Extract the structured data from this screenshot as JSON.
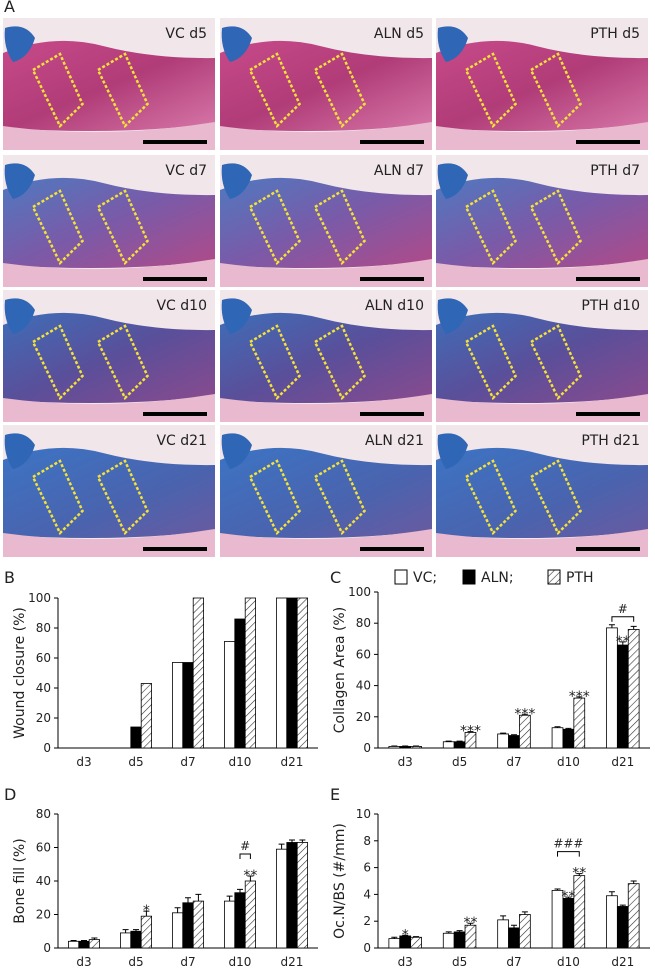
{
  "figure": {
    "panel_a": {
      "letter": "A",
      "images": [
        "VC d5",
        "ALN d5",
        "PTH d5",
        "VC d7",
        "ALN d7",
        "PTH d7",
        "VC d10",
        "ALN d10",
        "PTH d10",
        "VC d21",
        "ALN d21",
        "PTH d21"
      ]
    },
    "legend": [
      {
        "name": "VC;",
        "color": "#ffffff"
      },
      {
        "name": "ALN;",
        "color": "#000000"
      },
      {
        "name": "PTH",
        "color": "#ffffff",
        "pattern": "hatch"
      }
    ]
  },
  "chart_data": [
    {
      "type": "bar",
      "panel": "B",
      "ylabel": "Wound closure (%)",
      "categories": [
        "d3",
        "d5",
        "d7",
        "d10",
        "d21"
      ],
      "ylim": [
        0,
        100
      ],
      "yticks": [
        0,
        20,
        40,
        60,
        80,
        100
      ],
      "series": [
        {
          "values": [
            0,
            0,
            57,
            71,
            100
          ]
        },
        {
          "values": [
            0,
            14,
            57,
            86,
            100
          ]
        },
        {
          "values": [
            0,
            43,
            100,
            100,
            100
          ]
        }
      ],
      "annotations": []
    },
    {
      "type": "bar",
      "panel": "C",
      "ylabel": "Collagen Area (%)",
      "categories": [
        "d3",
        "d5",
        "d7",
        "d10",
        "d21"
      ],
      "ylim": [
        0,
        100
      ],
      "yticks": [
        0,
        20,
        40,
        60,
        80,
        100
      ],
      "series": [
        {
          "values": [
            1,
            4,
            9,
            13,
            77
          ],
          "errors": [
            0.3,
            0.4,
            0.5,
            0.6,
            2
          ]
        },
        {
          "values": [
            1,
            4,
            8,
            12,
            66
          ],
          "errors": [
            0.3,
            0.4,
            0.5,
            0.6,
            2
          ]
        },
        {
          "values": [
            1,
            10,
            21,
            32,
            76
          ],
          "errors": [
            0.3,
            0.5,
            0.6,
            0.8,
            2
          ]
        }
      ],
      "annotations": [
        {
          "text": "***",
          "category": 1,
          "series": 2
        },
        {
          "text": "***",
          "category": 2,
          "series": 2
        },
        {
          "text": "***",
          "category": 3,
          "series": 2
        },
        {
          "text": "**",
          "category": 4,
          "series": 1
        },
        {
          "text": "#",
          "category": 4,
          "from": 0,
          "to": 2
        }
      ]
    },
    {
      "type": "bar",
      "panel": "D",
      "ylabel": "Bone fill (%)",
      "categories": [
        "d3",
        "d5",
        "d7",
        "d10",
        "d21"
      ],
      "ylim": [
        0,
        80
      ],
      "yticks": [
        0,
        20,
        40,
        60,
        80
      ],
      "series": [
        {
          "values": [
            4,
            9,
            21,
            28,
            59
          ],
          "errors": [
            0.5,
            2,
            3,
            3,
            3
          ]
        },
        {
          "values": [
            4,
            10,
            27,
            33,
            63
          ],
          "errors": [
            0.5,
            1,
            3,
            2,
            1.5
          ]
        },
        {
          "values": [
            5,
            19,
            28,
            40,
            63
          ],
          "errors": [
            1,
            3,
            4,
            3,
            1.5
          ]
        }
      ],
      "annotations": [
        {
          "text": "*",
          "category": 1,
          "series": 2
        },
        {
          "text": "**",
          "category": 3,
          "series": 2
        },
        {
          "text": "#",
          "category": 3,
          "from": 1,
          "to": 2
        }
      ]
    },
    {
      "type": "bar",
      "panel": "E",
      "ylabel": "Oc.N/BS (#/mm)",
      "categories": [
        "d3",
        "d5",
        "d7",
        "d10",
        "d21"
      ],
      "ylim": [
        0,
        10
      ],
      "yticks": [
        0,
        2,
        4,
        6,
        8,
        10
      ],
      "series": [
        {
          "values": [
            0.7,
            1.1,
            2.1,
            4.3,
            3.9
          ],
          "errors": [
            0.1,
            0.1,
            0.3,
            0.1,
            0.3
          ]
        },
        {
          "values": [
            0.9,
            1.2,
            1.5,
            3.7,
            3.1
          ],
          "errors": [
            0.05,
            0.1,
            0.2,
            0.1,
            0.1
          ]
        },
        {
          "values": [
            0.8,
            1.7,
            2.5,
            5.4,
            4.8
          ],
          "errors": [
            0.05,
            0.15,
            0.2,
            0.15,
            0.2
          ]
        }
      ],
      "annotations": [
        {
          "text": "*",
          "category": 0,
          "series": 1
        },
        {
          "text": "**",
          "category": 1,
          "series": 2
        },
        {
          "text": "**",
          "category": 3,
          "series": 1
        },
        {
          "text": "**",
          "category": 3,
          "series": 2
        },
        {
          "text": "###",
          "category": 3,
          "from": 0,
          "to": 2
        }
      ]
    }
  ]
}
